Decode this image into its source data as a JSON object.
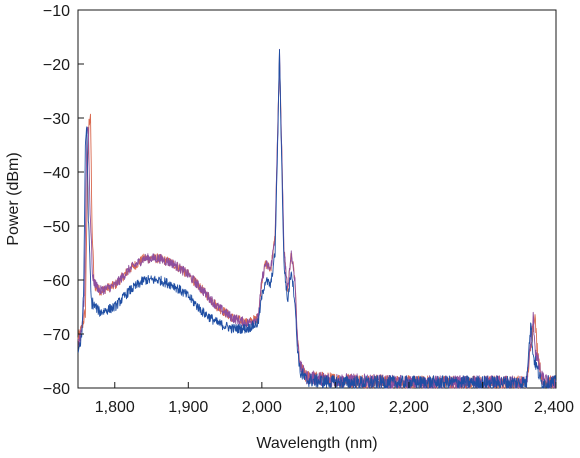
{
  "chart_data": {
    "type": "line",
    "title": "",
    "xlabel": "Wavelength (nm)",
    "ylabel": "Power (dBm)",
    "xlim": [
      1750,
      2400
    ],
    "ylim": [
      -80,
      -10
    ],
    "x_ticks": [
      1800,
      1900,
      2000,
      2100,
      2200,
      2300,
      2400
    ],
    "x_tick_labels": [
      "1,800",
      "1,900",
      "2,000",
      "2,100",
      "2,200",
      "2,300",
      "2,400"
    ],
    "y_ticks": [
      -80,
      -70,
      -60,
      -50,
      -40,
      -30,
      -20,
      -10
    ],
    "y_tick_labels": [
      "−80",
      "−70",
      "−60",
      "−50",
      "−40",
      "−30",
      "−20",
      "−10"
    ],
    "grid": false,
    "legend": "none",
    "series": [
      {
        "color": "#d9694f",
        "points": [
          [
            1750,
            -71
          ],
          [
            1755,
            -69
          ],
          [
            1760,
            -66
          ],
          [
            1763,
            -40
          ],
          [
            1765,
            -31
          ],
          [
            1767,
            -29
          ],
          [
            1769,
            -50
          ],
          [
            1772,
            -61
          ],
          [
            1780,
            -62
          ],
          [
            1800,
            -61
          ],
          [
            1820,
            -58
          ],
          [
            1840,
            -56
          ],
          [
            1860,
            -56
          ],
          [
            1880,
            -57
          ],
          [
            1900,
            -59
          ],
          [
            1920,
            -62
          ],
          [
            1940,
            -65
          ],
          [
            1960,
            -67
          ],
          [
            1980,
            -68
          ],
          [
            1995,
            -67
          ],
          [
            2000,
            -60
          ],
          [
            2005,
            -57
          ],
          [
            2012,
            -58
          ],
          [
            2018,
            -52
          ],
          [
            2022,
            -30
          ],
          [
            2024,
            -19
          ],
          [
            2026,
            -30
          ],
          [
            2030,
            -54
          ],
          [
            2035,
            -62
          ],
          [
            2040,
            -55
          ],
          [
            2045,
            -60
          ],
          [
            2048,
            -70
          ],
          [
            2052,
            -76
          ],
          [
            2060,
            -78
          ],
          [
            2100,
            -78.5
          ],
          [
            2200,
            -79
          ],
          [
            2300,
            -79
          ],
          [
            2360,
            -79
          ],
          [
            2368,
            -70
          ],
          [
            2371,
            -66
          ],
          [
            2374,
            -72
          ],
          [
            2380,
            -78
          ],
          [
            2390,
            -79
          ],
          [
            2400,
            -79
          ]
        ]
      },
      {
        "color": "#8e4f9e",
        "points": [
          [
            1750,
            -72
          ],
          [
            1755,
            -70
          ],
          [
            1759,
            -62
          ],
          [
            1762,
            -33
          ],
          [
            1764,
            -31
          ],
          [
            1766,
            -45
          ],
          [
            1770,
            -60
          ],
          [
            1780,
            -62
          ],
          [
            1800,
            -61
          ],
          [
            1820,
            -58
          ],
          [
            1840,
            -56
          ],
          [
            1860,
            -56
          ],
          [
            1880,
            -57
          ],
          [
            1900,
            -59
          ],
          [
            1920,
            -62
          ],
          [
            1940,
            -65
          ],
          [
            1960,
            -67
          ],
          [
            1980,
            -68
          ],
          [
            1995,
            -67
          ],
          [
            2000,
            -60
          ],
          [
            2005,
            -57
          ],
          [
            2012,
            -58
          ],
          [
            2018,
            -52
          ],
          [
            2022,
            -30
          ],
          [
            2024,
            -18
          ],
          [
            2026,
            -30
          ],
          [
            2030,
            -54
          ],
          [
            2035,
            -62
          ],
          [
            2040,
            -55
          ],
          [
            2045,
            -60
          ],
          [
            2048,
            -70
          ],
          [
            2052,
            -76
          ],
          [
            2060,
            -78
          ],
          [
            2100,
            -78.5
          ],
          [
            2200,
            -79
          ],
          [
            2300,
            -79
          ],
          [
            2360,
            -79
          ],
          [
            2366,
            -71
          ],
          [
            2369,
            -67
          ],
          [
            2372,
            -73
          ],
          [
            2380,
            -78
          ],
          [
            2390,
            -79
          ],
          [
            2400,
            -79
          ]
        ]
      },
      {
        "color": "#1f4ea3",
        "points": [
          [
            1750,
            -73
          ],
          [
            1755,
            -71
          ],
          [
            1758,
            -60
          ],
          [
            1760,
            -35
          ],
          [
            1762,
            -31
          ],
          [
            1764,
            -48
          ],
          [
            1768,
            -64
          ],
          [
            1780,
            -66
          ],
          [
            1800,
            -65
          ],
          [
            1820,
            -62
          ],
          [
            1840,
            -60
          ],
          [
            1860,
            -60
          ],
          [
            1880,
            -61
          ],
          [
            1900,
            -63
          ],
          [
            1920,
            -66
          ],
          [
            1940,
            -68
          ],
          [
            1960,
            -69
          ],
          [
            1980,
            -69
          ],
          [
            1995,
            -68
          ],
          [
            2000,
            -63
          ],
          [
            2005,
            -60
          ],
          [
            2012,
            -61
          ],
          [
            2018,
            -55
          ],
          [
            2022,
            -32
          ],
          [
            2024,
            -17
          ],
          [
            2026,
            -32
          ],
          [
            2030,
            -57
          ],
          [
            2035,
            -64
          ],
          [
            2040,
            -58
          ],
          [
            2045,
            -64
          ],
          [
            2048,
            -72
          ],
          [
            2052,
            -77
          ],
          [
            2060,
            -78.5
          ],
          [
            2100,
            -79
          ],
          [
            2200,
            -79
          ],
          [
            2300,
            -79
          ],
          [
            2360,
            -79
          ],
          [
            2363,
            -72
          ],
          [
            2366,
            -68
          ],
          [
            2369,
            -74
          ],
          [
            2380,
            -79
          ],
          [
            2390,
            -79
          ],
          [
            2400,
            -79
          ]
        ]
      }
    ]
  }
}
